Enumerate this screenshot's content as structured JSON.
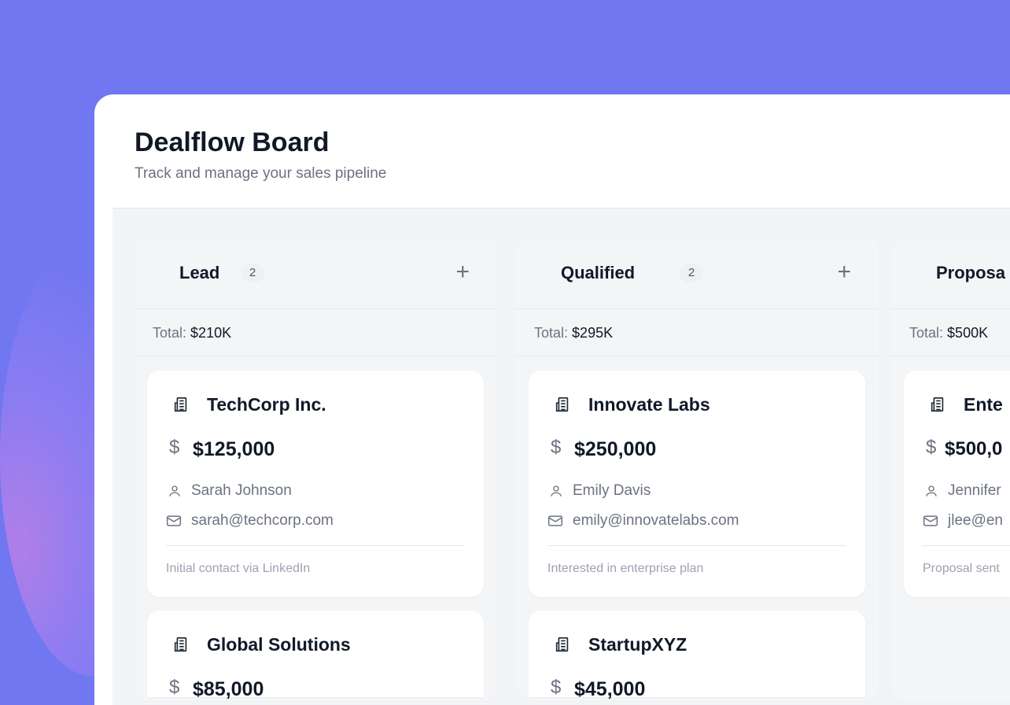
{
  "header": {
    "title": "Dealflow Board",
    "subtitle": "Track and manage your sales pipeline"
  },
  "columns": [
    {
      "name": "Lead",
      "count": "2",
      "total_label": "Total:",
      "total": "$210K",
      "cards": [
        {
          "company": "TechCorp Inc.",
          "amount": "$125,000",
          "contact": "Sarah Johnson",
          "email": "sarah@techcorp.com",
          "note": "Initial contact via LinkedIn"
        },
        {
          "company": "Global Solutions",
          "amount": "$85,000"
        }
      ]
    },
    {
      "name": "Qualified",
      "count": "2",
      "total_label": "Total:",
      "total": "$295K",
      "cards": [
        {
          "company": "Innovate Labs",
          "amount": "$250,000",
          "contact": "Emily Davis",
          "email": "emily@innovatelabs.com",
          "note": "Interested in enterprise plan"
        },
        {
          "company": "StartupXYZ",
          "amount": "$45,000"
        }
      ]
    },
    {
      "name": "Proposa",
      "total_label": "Total:",
      "total": "$500K",
      "cards": [
        {
          "company": "Ente",
          "amount": "$500,0",
          "contact": "Jennifer",
          "email": "jlee@en",
          "note": "Proposal sent"
        }
      ]
    }
  ],
  "icons": {
    "company": "building-icon",
    "amount": "dollar-icon",
    "contact": "user-icon",
    "email": "mail-icon",
    "add": "plus-icon"
  }
}
